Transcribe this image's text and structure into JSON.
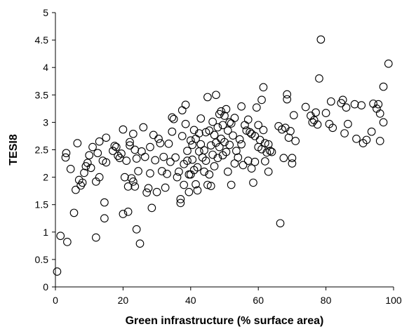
{
  "chart_data": {
    "type": "scatter",
    "title": "",
    "xlabel": "Green infrastructure (% surface area)",
    "ylabel": "TESI8",
    "xlim": [
      0,
      100
    ],
    "ylim": [
      0,
      5
    ],
    "xticks": [
      0,
      20,
      40,
      60,
      80,
      100
    ],
    "yticks": [
      0,
      0.5,
      1,
      1.5,
      2,
      2.5,
      3,
      3.5,
      4,
      4.5,
      5
    ],
    "ytick_labels": [
      "0",
      "0.5",
      "1",
      "1.5",
      "2",
      "2.5",
      "3",
      "3.5",
      "4",
      "4.5",
      "5"
    ],
    "grid": false,
    "marker": "open-circle",
    "series": [
      {
        "points": [
          [
            0.5,
            0.28
          ],
          [
            1.5,
            0.93
          ],
          [
            3.5,
            0.82
          ],
          [
            3,
            2.36
          ],
          [
            3.2,
            2.44
          ],
          [
            4.5,
            2.15
          ],
          [
            5.5,
            1.35
          ],
          [
            6,
            1.77
          ],
          [
            6.5,
            2.62
          ],
          [
            7,
            1.95
          ],
          [
            7.5,
            1.85
          ],
          [
            8,
            1.9
          ],
          [
            8.5,
            2.08
          ],
          [
            9,
            2.2
          ],
          [
            9.5,
            2.26
          ],
          [
            10,
            2.4
          ],
          [
            10.5,
            2.17
          ],
          [
            11,
            2.55
          ],
          [
            12,
            0.9
          ],
          [
            12,
            1.92
          ],
          [
            12.5,
            2.44
          ],
          [
            13,
            2.65
          ],
          [
            13,
            2.0
          ],
          [
            14,
            2.3
          ],
          [
            14.5,
            1.25
          ],
          [
            14.5,
            1.54
          ],
          [
            15,
            2.72
          ],
          [
            15,
            2.27
          ],
          [
            17,
            2.48
          ],
          [
            17.5,
            2.57
          ],
          [
            18,
            2.55
          ],
          [
            18.5,
            2.39
          ],
          [
            19,
            2.35
          ],
          [
            19.5,
            2.43
          ],
          [
            20,
            1.33
          ],
          [
            20,
            2.87
          ],
          [
            20.5,
            2.0
          ],
          [
            21,
            2.3
          ],
          [
            21.5,
            1.83
          ],
          [
            21.5,
            1.37
          ],
          [
            22,
            2.64
          ],
          [
            22,
            2.58
          ],
          [
            22.5,
            1.98
          ],
          [
            23,
            1.92
          ],
          [
            23,
            2.79
          ],
          [
            23.5,
            1.83
          ],
          [
            23.5,
            2.5
          ],
          [
            24,
            2.34
          ],
          [
            24,
            1.05
          ],
          [
            24.5,
            2.11
          ],
          [
            25,
            0.79
          ],
          [
            25.5,
            2.47
          ],
          [
            26,
            2.91
          ],
          [
            26.5,
            2.37
          ],
          [
            27,
            1.72
          ],
          [
            27.5,
            1.8
          ],
          [
            28,
            2.55
          ],
          [
            28,
            2.07
          ],
          [
            28.5,
            1.44
          ],
          [
            29,
            2.77
          ],
          [
            29.5,
            2.31
          ],
          [
            30,
            1.73
          ],
          [
            30.5,
            2.7
          ],
          [
            31,
            2.62
          ],
          [
            31.5,
            2.11
          ],
          [
            32,
            2.37
          ],
          [
            32.5,
            1.81
          ],
          [
            33,
            2.06
          ],
          [
            33.5,
            2.61
          ],
          [
            34,
            2.28
          ],
          [
            34.5,
            2.83
          ],
          [
            34.5,
            3.09
          ],
          [
            35,
            3.06
          ],
          [
            35.5,
            2.36
          ],
          [
            36,
            2.0
          ],
          [
            36.5,
            2.1
          ],
          [
            37,
            1.53
          ],
          [
            37,
            1.6
          ],
          [
            37.5,
            3.22
          ],
          [
            37.5,
            2.75
          ],
          [
            38,
            2.24
          ],
          [
            38,
            1.86
          ],
          [
            38.5,
            3.32
          ],
          [
            38.5,
            2.97
          ],
          [
            39,
            2.48
          ],
          [
            39,
            2.3
          ],
          [
            39.5,
            2.05
          ],
          [
            39.5,
            1.73
          ],
          [
            40,
            2.67
          ],
          [
            40,
            2.05
          ],
          [
            40.5,
            2.32
          ],
          [
            40.5,
            2.59
          ],
          [
            41,
            2.13
          ],
          [
            41,
            2.86
          ],
          [
            41.5,
            2.7
          ],
          [
            41.5,
            1.87
          ],
          [
            42,
            2.18
          ],
          [
            42,
            1.76
          ],
          [
            42.5,
            2.8
          ],
          [
            42.5,
            2.47
          ],
          [
            43,
            3.07
          ],
          [
            43,
            2.6
          ],
          [
            43.5,
            2.36
          ],
          [
            44,
            2.1
          ],
          [
            44,
            2.49
          ],
          [
            44.5,
            2.82
          ],
          [
            44.5,
            2.3
          ],
          [
            45,
            3.46
          ],
          [
            45,
            1.86
          ],
          [
            45.5,
            2.85
          ],
          [
            45.5,
            2.05
          ],
          [
            46,
            2.58
          ],
          [
            46,
            1.84
          ],
          [
            46.5,
            3.01
          ],
          [
            46.5,
            2.41
          ],
          [
            47,
            2.77
          ],
          [
            47,
            2.2
          ],
          [
            47.5,
            3.5
          ],
          [
            47.5,
            2.63
          ],
          [
            48,
            2.91
          ],
          [
            48,
            2.35
          ],
          [
            48.5,
            3.15
          ],
          [
            48.5,
            2.55
          ],
          [
            49,
            3.2
          ],
          [
            49,
            2.7
          ],
          [
            49.5,
            2.95
          ],
          [
            49.5,
            2.4
          ],
          [
            50,
            3.12
          ],
          [
            50,
            2.64
          ],
          [
            50.5,
            3.24
          ],
          [
            50.5,
            2.46
          ],
          [
            51,
            2.85
          ],
          [
            51,
            2.1
          ],
          [
            51.5,
            3.0
          ],
          [
            51.5,
            2.59
          ],
          [
            52,
            2.98
          ],
          [
            52,
            1.86
          ],
          [
            52.5,
            2.76
          ],
          [
            53,
            3.08
          ],
          [
            53,
            2.25
          ],
          [
            53.5,
            2.48
          ],
          [
            54,
            2.36
          ],
          [
            54.5,
            2.69
          ],
          [
            55,
            3.29
          ],
          [
            55,
            2.6
          ],
          [
            55.5,
            2.22
          ],
          [
            56,
            2.95
          ],
          [
            56.5,
            2.85
          ],
          [
            57,
            3.05
          ],
          [
            57,
            2.3
          ],
          [
            57.5,
            2.82
          ],
          [
            58,
            2.16
          ],
          [
            58,
            2.79
          ],
          [
            58.5,
            1.9
          ],
          [
            59,
            2.75
          ],
          [
            59,
            2.28
          ],
          [
            59.5,
            3.27
          ],
          [
            60,
            2.95
          ],
          [
            60,
            2.55
          ],
          [
            60.5,
            2.68
          ],
          [
            61,
            3.41
          ],
          [
            61,
            2.51
          ],
          [
            61.5,
            3.64
          ],
          [
            61.5,
            2.86
          ],
          [
            62,
            2.62
          ],
          [
            62,
            2.29
          ],
          [
            62.5,
            2.45
          ],
          [
            63,
            2.1
          ],
          [
            63,
            2.6
          ],
          [
            63.5,
            2.48
          ],
          [
            64,
            2.46
          ],
          [
            66,
            2.93
          ],
          [
            66.5,
            1.16
          ],
          [
            67,
            2.87
          ],
          [
            67.5,
            2.35
          ],
          [
            68,
            2.9
          ],
          [
            68.5,
            3.42
          ],
          [
            68.5,
            3.51
          ],
          [
            69,
            2.72
          ],
          [
            69.5,
            2.84
          ],
          [
            70,
            2.25
          ],
          [
            70,
            2.35
          ],
          [
            70.5,
            3.13
          ],
          [
            71,
            2.66
          ],
          [
            74,
            3.28
          ],
          [
            75.5,
            3.12
          ],
          [
            76,
            3.0
          ],
          [
            76.5,
            3.04
          ],
          [
            77,
            3.18
          ],
          [
            77.5,
            2.96
          ],
          [
            78,
            3.8
          ],
          [
            78.5,
            4.51
          ],
          [
            80,
            3.17
          ],
          [
            81,
            2.97
          ],
          [
            81.5,
            3.38
          ],
          [
            82,
            2.9
          ],
          [
            84.5,
            3.35
          ],
          [
            85,
            3.41
          ],
          [
            85.5,
            2.8
          ],
          [
            86,
            3.27
          ],
          [
            86.5,
            2.97
          ],
          [
            88.5,
            3.33
          ],
          [
            89,
            2.7
          ],
          [
            90.5,
            3.31
          ],
          [
            91,
            2.62
          ],
          [
            92,
            2.68
          ],
          [
            93.5,
            2.83
          ],
          [
            94,
            3.34
          ],
          [
            95,
            3.25
          ],
          [
            95.5,
            3.33
          ],
          [
            96,
            3.16
          ],
          [
            96,
            2.66
          ],
          [
            97,
            3.0
          ],
          [
            97,
            3.65
          ],
          [
            98.5,
            4.07
          ]
        ]
      }
    ]
  }
}
